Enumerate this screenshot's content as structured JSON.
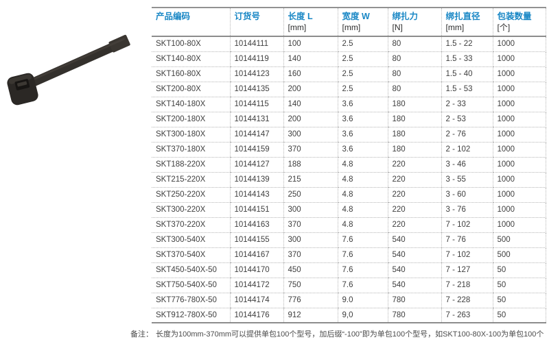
{
  "photo": {
    "alt_name": "black-nylon-cable-tie",
    "strap_color": "#33302c",
    "head_color": "#2b2825",
    "slot_color": "#171513"
  },
  "table": {
    "accent_color": "#1987c5",
    "columns": [
      {
        "key": "product-code",
        "label": "产品编码",
        "unit": ""
      },
      {
        "key": "order-number",
        "label": "订货号",
        "unit": ""
      },
      {
        "key": "length",
        "label": "长度 L",
        "unit": "[mm]"
      },
      {
        "key": "width",
        "label": "宽度 W",
        "unit": "[mm]"
      },
      {
        "key": "tie-force",
        "label": "绑扎力",
        "unit": "[N]"
      },
      {
        "key": "tie-diameter",
        "label": "绑扎直径",
        "unit": "[mm]"
      },
      {
        "key": "package-qty",
        "label": "包装数量",
        "unit": "[个]"
      }
    ],
    "rows": [
      [
        "SKT100-80X",
        "10144111",
        "100",
        "2.5",
        "80",
        "1.5 - 22",
        "1000"
      ],
      [
        "SKT140-80X",
        "10144119",
        "140",
        "2.5",
        "80",
        "1.5 - 33",
        "1000"
      ],
      [
        "SKT160-80X",
        "10144123",
        "160",
        "2.5",
        "80",
        "1.5 - 40",
        "1000"
      ],
      [
        "SKT200-80X",
        "10144135",
        "200",
        "2.5",
        "80",
        "1.5 - 53",
        "1000"
      ],
      [
        "SKT140-180X",
        "10144115",
        "140",
        "3.6",
        "180",
        "2 - 33",
        "1000"
      ],
      [
        "SKT200-180X",
        "10144131",
        "200",
        "3.6",
        "180",
        "2 - 53",
        "1000"
      ],
      [
        "SKT300-180X",
        "10144147",
        "300",
        "3.6",
        "180",
        "2 - 76",
        "1000"
      ],
      [
        "SKT370-180X",
        "10144159",
        "370",
        "3.6",
        "180",
        "2 - 102",
        "1000"
      ],
      [
        "SKT188-220X",
        "10144127",
        "188",
        "4.8",
        "220",
        "3 - 46",
        "1000"
      ],
      [
        "SKT215-220X",
        "10144139",
        "215",
        "4.8",
        "220",
        "3 - 55",
        "1000"
      ],
      [
        "SKT250-220X",
        "10144143",
        "250",
        "4.8",
        "220",
        "3 - 60",
        "1000"
      ],
      [
        "SKT300-220X",
        "10144151",
        "300",
        "4.8",
        "220",
        "3 - 76",
        "1000"
      ],
      [
        "SKT370-220X",
        "10144163",
        "370",
        "4.8",
        "220",
        "7 - 102",
        "1000"
      ],
      [
        "SKT300-540X",
        "10144155",
        "300",
        "7.6",
        "540",
        "7 - 76",
        "500"
      ],
      [
        "SKT370-540X",
        "10144167",
        "370",
        "7.6",
        "540",
        "7 - 102",
        "500"
      ],
      [
        "SKT450-540X-50",
        "10144170",
        "450",
        "7.6",
        "540",
        "7 - 127",
        "50"
      ],
      [
        "SKT750-540X-50",
        "10144172",
        "750",
        "7.6",
        "540",
        "7 - 218",
        "50"
      ],
      [
        "SKT776-780X-50",
        "10144174",
        "776",
        "9.0",
        "780",
        "7 - 228",
        "50"
      ],
      [
        "SKT912-780X-50",
        "10144176",
        "912",
        "9,0",
        "780",
        "7 - 263",
        "50"
      ]
    ]
  },
  "footnote": {
    "label": "备注：",
    "text": "长度为100mm-370mm可以提供单包100个型号，加后缀“-100”即为单包100个型号，如SKT100-80X-100为单包100个"
  }
}
